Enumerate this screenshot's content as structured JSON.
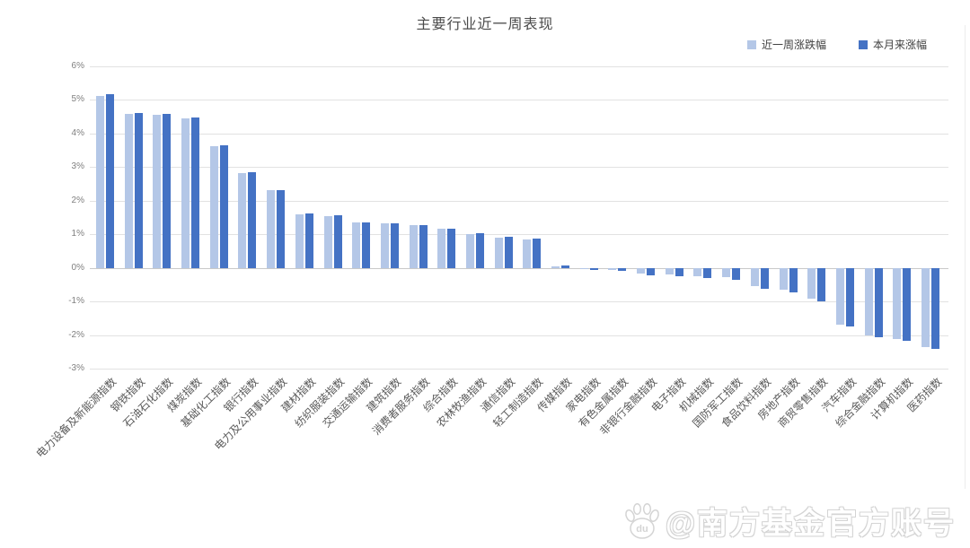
{
  "watermark": {
    "text": "@南方基金官方账号",
    "icon": "baidu-paw-icon"
  },
  "chart_data": {
    "type": "bar",
    "title": "主要行业近一周表现",
    "categories": [
      "电力设备及新能源指数",
      "钢铁指数",
      "石油石化指数",
      "煤炭指数",
      "基础化工指数",
      "银行指数",
      "电力及公用事业指数",
      "建材指数",
      "纺织服装指数",
      "交通运输指数",
      "建筑指数",
      "消费者服务指数",
      "综合指数",
      "农林牧渔指数",
      "通信指数",
      "轻工制造指数",
      "传媒指数",
      "家电指数",
      "有色金属指数",
      "非银行金融指数",
      "电子指数",
      "机械指数",
      "国防军工指数",
      "食品饮料指数",
      "房地产指数",
      "商贸零售指数",
      "汽车指数",
      "综合金融指数",
      "计算机指数",
      "医药指数"
    ],
    "series": [
      {
        "name": "近一周涨跌幅",
        "color": "#b4c7e7",
        "values": [
          5.12,
          4.58,
          4.56,
          4.45,
          3.62,
          2.82,
          2.3,
          1.6,
          1.54,
          1.34,
          1.31,
          1.27,
          1.15,
          1.01,
          0.9,
          0.85,
          0.05,
          -0.04,
          -0.07,
          -0.16,
          -0.19,
          -0.24,
          -0.28,
          -0.55,
          -0.66,
          -0.93,
          -1.68,
          -2.02,
          -2.11,
          -2.35
        ]
      },
      {
        "name": "本月来涨幅",
        "color": "#4472c4",
        "values": [
          5.16,
          4.6,
          4.58,
          4.47,
          3.63,
          2.84,
          2.31,
          1.62,
          1.56,
          1.34,
          1.32,
          1.27,
          1.16,
          1.02,
          0.92,
          0.87,
          0.07,
          -0.07,
          -0.09,
          -0.22,
          -0.26,
          -0.3,
          -0.35,
          -0.62,
          -0.73,
          -1.0,
          -1.75,
          -2.07,
          -2.17,
          -2.42
        ]
      }
    ],
    "ylim": [
      -3,
      6
    ],
    "yticks": [
      "6%",
      "5%",
      "4%",
      "3%",
      "2%",
      "1%",
      "0%",
      "-1%",
      "-2%",
      "-3%"
    ],
    "xlabel": "",
    "ylabel": "",
    "grid": "horizontal",
    "legend_position": "top-right"
  }
}
